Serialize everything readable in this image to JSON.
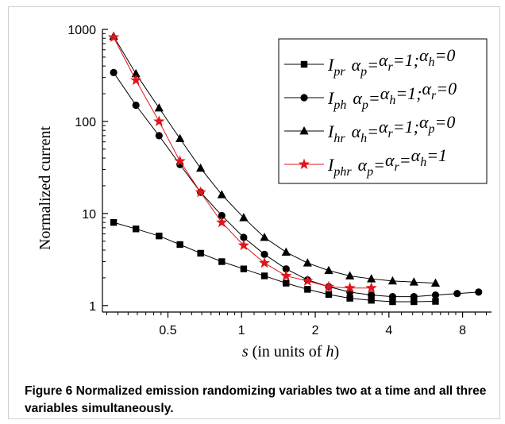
{
  "caption": {
    "label": "Figure 6",
    "text": "Normalized emission randomizing variables two at a time and all three variables simultaneously."
  },
  "chart_data": {
    "type": "line",
    "xlabel": "s (in units of h)",
    "ylabel": "Normalized current",
    "xscale": "log",
    "yscale": "log",
    "xlim": [
      0.27,
      10.5
    ],
    "ylim": [
      0.85,
      1000
    ],
    "xticks": [
      0.5,
      1,
      2,
      4,
      8
    ],
    "yticks": [
      1,
      10,
      100,
      1000
    ],
    "legend_position": "top-right",
    "series": [
      {
        "name": "I_pr α_p=α_r=1; α_h=0",
        "color": "#000000",
        "marker": "square",
        "x": [
          0.3,
          0.37,
          0.46,
          0.56,
          0.68,
          0.83,
          1.02,
          1.24,
          1.52,
          1.86,
          2.27,
          2.77,
          3.39,
          4.14,
          5.06,
          6.2
        ],
        "y": [
          8.0,
          6.8,
          5.7,
          4.6,
          3.7,
          3.0,
          2.5,
          2.1,
          1.75,
          1.5,
          1.32,
          1.2,
          1.14,
          1.1,
          1.1,
          1.11
        ]
      },
      {
        "name": "I_ph α_p=α_h=1; α_r=0",
        "color": "#000000",
        "marker": "circle",
        "x": [
          0.3,
          0.37,
          0.46,
          0.56,
          0.68,
          0.83,
          1.02,
          1.24,
          1.52,
          1.86,
          2.27,
          2.77,
          3.39,
          4.14,
          5.06,
          6.2,
          7.6,
          9.3
        ],
        "y": [
          340,
          150,
          70,
          34,
          17,
          9.5,
          5.5,
          3.6,
          2.5,
          1.9,
          1.6,
          1.4,
          1.3,
          1.25,
          1.25,
          1.3,
          1.35,
          1.4
        ]
      },
      {
        "name": "I_hr α_h=α_r=1; α_p=0",
        "color": "#000000",
        "marker": "triangle",
        "x": [
          0.3,
          0.37,
          0.46,
          0.56,
          0.68,
          0.83,
          1.02,
          1.24,
          1.52,
          1.86,
          2.27,
          2.77,
          3.39,
          4.14,
          5.06,
          6.2
        ],
        "y": [
          840,
          330,
          140,
          65,
          31,
          16,
          9,
          5.5,
          3.8,
          2.9,
          2.4,
          2.1,
          1.95,
          1.85,
          1.8,
          1.75
        ]
      },
      {
        "name": "I_phr α_p=α_r=α_h=1",
        "color": "#e0151c",
        "marker": "star",
        "x": [
          0.3,
          0.37,
          0.46,
          0.56,
          0.68,
          0.83,
          1.02,
          1.24,
          1.52,
          1.86,
          2.27,
          2.77,
          3.39
        ],
        "y": [
          820,
          280,
          100,
          37,
          17,
          8,
          4.5,
          2.9,
          2.1,
          1.85,
          1.6,
          1.55,
          1.55
        ]
      }
    ]
  }
}
